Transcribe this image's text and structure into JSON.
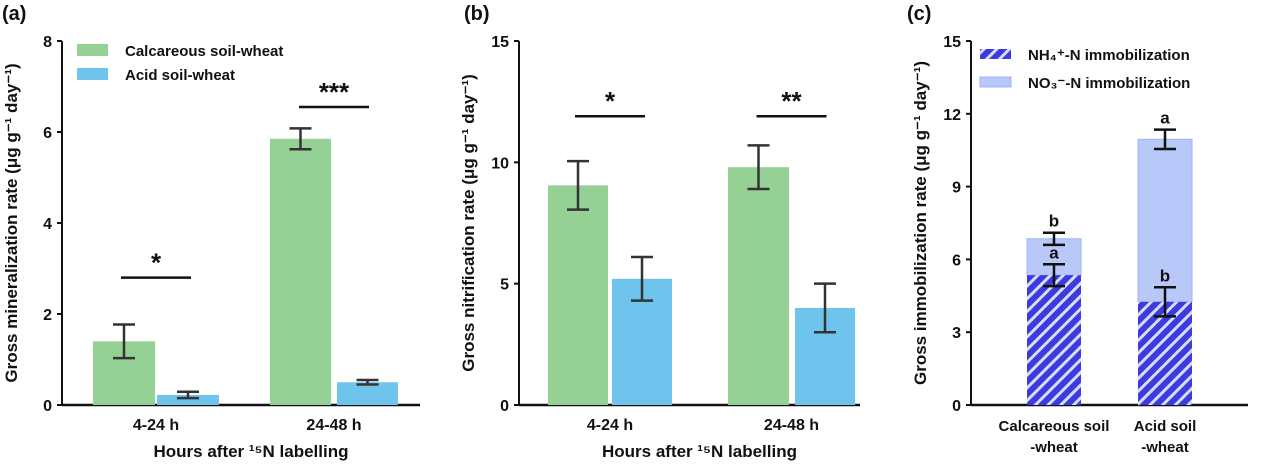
{
  "colors": {
    "calcareous": "#95d095",
    "acid": "#6ec4ec",
    "nh4": "#3b3be0",
    "no3": "#b8c8f8",
    "error": "#333333"
  },
  "chart_data": [
    {
      "type": "bar",
      "panel_label": "(a)",
      "ylabel": "Gross mineralization rate (μg g⁻¹ day⁻¹)",
      "xlabel": "Hours after ¹⁵N labelling",
      "categories": [
        "4-24 h",
        "24-48 h"
      ],
      "ylim": [
        0,
        8
      ],
      "yticks": [
        "0",
        "2",
        "4",
        "6",
        "8"
      ],
      "legend_position": "top-left",
      "series": [
        {
          "name": "Calcareous soil-wheat",
          "values": [
            1.4,
            5.85
          ],
          "errors": [
            0.37,
            0.23
          ]
        },
        {
          "name": "Acid soil-wheat",
          "values": [
            0.22,
            0.5
          ],
          "errors": [
            0.07,
            0.05
          ]
        }
      ],
      "significance": [
        "*",
        "***"
      ],
      "sig_y": [
        2.8,
        6.55
      ]
    },
    {
      "type": "bar",
      "panel_label": "(b)",
      "ylabel": "Gross nitrification rate (μg g⁻¹ day⁻¹)",
      "xlabel": "Hours after ¹⁵N labelling",
      "categories": [
        "4-24 h",
        "24-48 h"
      ],
      "ylim": [
        0,
        15
      ],
      "yticks": [
        "0",
        "5",
        "10",
        "15"
      ],
      "series": [
        {
          "values": [
            9.05,
            9.8
          ],
          "errors": [
            1.0,
            0.9
          ]
        },
        {
          "values": [
            5.2,
            4.0
          ],
          "errors": [
            0.9,
            1.0
          ]
        }
      ],
      "significance": [
        "*",
        "**"
      ],
      "sig_y": [
        11.9,
        11.9
      ]
    },
    {
      "type": "bar",
      "stacked": true,
      "panel_label": "(c)",
      "ylabel": "Gross immobilization rate (μg g⁻¹ day⁻¹)",
      "categories": [
        [
          "Calcareous soil",
          "-wheat"
        ],
        [
          "Acid soil",
          "-wheat"
        ]
      ],
      "ylim": [
        0,
        15
      ],
      "yticks": [
        "0",
        "3",
        "6",
        "9",
        "12",
        "15"
      ],
      "legend_position": "top-left",
      "series": [
        {
          "name": "NH₄⁺-N immobilization",
          "values": [
            5.35,
            4.25
          ],
          "errors": [
            0.45,
            0.6
          ],
          "letters": [
            "a",
            "b"
          ]
        },
        {
          "name": "NO₃⁻-N immobilization",
          "values": [
            1.5,
            6.7
          ],
          "errors": [
            0.25,
            0.4
          ],
          "letters": [
            "b",
            "a"
          ]
        }
      ]
    }
  ]
}
